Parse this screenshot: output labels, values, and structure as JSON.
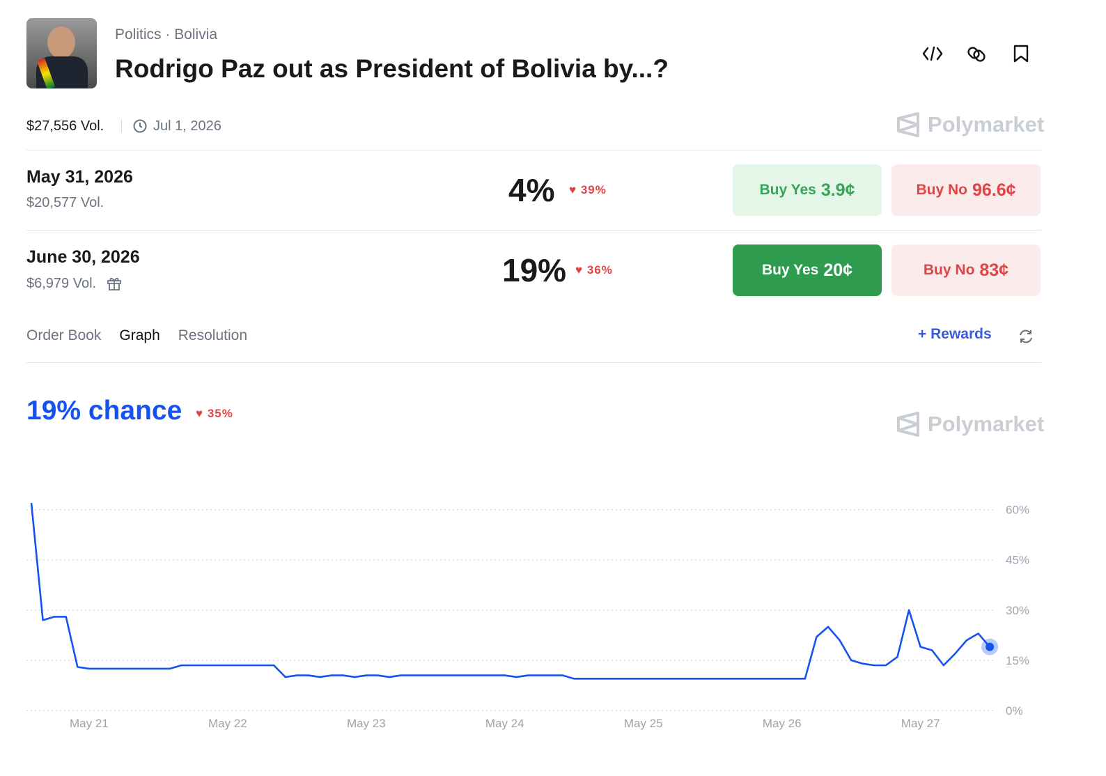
{
  "header": {
    "category": "Politics",
    "subcategory": "Bolivia",
    "title": "Rodrigo Paz out as President of Bolivia by...?",
    "volume": "$27,556 Vol.",
    "end_date": "Jul 1, 2026",
    "brand": "Polymarket"
  },
  "outcomes": [
    {
      "date": "May 31, 2026",
      "volume": "$20,577 Vol.",
      "chance": "4%",
      "change": "39%",
      "buy_yes": "Buy Yes",
      "yes_price": "3.9¢",
      "buy_no": "Buy No",
      "no_price": "96.6¢"
    },
    {
      "date": "June 30, 2026",
      "volume": "$6,979 Vol.",
      "chance": "19%",
      "change": "36%",
      "buy_yes": "Buy Yes",
      "yes_price": "20¢",
      "buy_no": "Buy No",
      "no_price": "83¢"
    }
  ],
  "tabs": [
    "Order Book",
    "Graph",
    "Resolution"
  ],
  "rewards": "Rewards",
  "chart_data": {
    "type": "line",
    "title": "19% chance",
    "change": "35%",
    "brand": "Polymarket",
    "categories": [
      null,
      null,
      null,
      null,
      null,
      "May 21",
      null,
      null,
      null,
      null,
      null,
      null,
      null,
      null,
      null,
      null,
      null,
      "May 22",
      null,
      null,
      null,
      null,
      null,
      null,
      null,
      null,
      null,
      null,
      null,
      "May 23",
      null,
      null,
      null,
      null,
      null,
      null,
      null,
      null,
      null,
      null,
      null,
      "May 24",
      null,
      null,
      null,
      null,
      null,
      null,
      null,
      null,
      null,
      null,
      null,
      "May 25",
      null,
      null,
      null,
      null,
      null,
      null,
      null,
      null,
      null,
      null,
      null,
      "May 26",
      null,
      null,
      null,
      null,
      null,
      null,
      null,
      null,
      null,
      null,
      null,
      "May 27",
      null,
      null,
      null,
      null,
      null,
      null
    ],
    "series": [
      {
        "name": "June 30, 2026",
        "color": "#1652f0",
        "values": [
          62,
          27,
          28,
          28,
          13,
          12.5,
          12.5,
          12.5,
          12.5,
          12.5,
          12.5,
          12.5,
          12.5,
          13.5,
          13.5,
          13.5,
          13.5,
          13.5,
          13.5,
          13.5,
          13.5,
          13.5,
          10,
          10.5,
          10.5,
          10,
          10.5,
          10.5,
          10,
          10.5,
          10.5,
          10,
          10.5,
          10.5,
          10.5,
          10.5,
          10.5,
          10.5,
          10.5,
          10.5,
          10.5,
          10.5,
          10,
          10.5,
          10.5,
          10.5,
          10.5,
          9.5,
          9.5,
          9.5,
          9.5,
          9.5,
          9.5,
          9.5,
          9.5,
          9.5,
          9.5,
          9.5,
          9.5,
          9.5,
          9.5,
          9.5,
          9.5,
          9.5,
          9.5,
          9.5,
          9.5,
          9.5,
          22,
          25,
          21,
          15,
          14,
          13.5,
          13.5,
          16,
          30,
          19,
          18,
          13.5,
          17,
          21,
          23,
          19
        ]
      }
    ],
    "ylim": [
      0,
      62
    ],
    "yticks": [
      {
        "value": 0,
        "label": "0%"
      },
      {
        "value": 15,
        "label": "15%"
      },
      {
        "value": 30,
        "label": "30%"
      },
      {
        "value": 45,
        "label": "45%"
      },
      {
        "value": 60,
        "label": "60%"
      }
    ],
    "grid": true
  }
}
